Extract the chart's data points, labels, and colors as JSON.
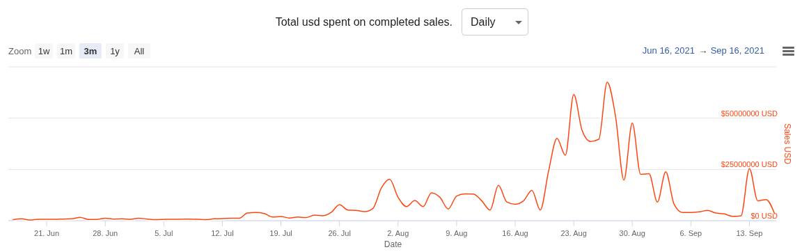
{
  "chart_data": {
    "type": "line",
    "title": "Total usd spent on completed sales.",
    "xlabel": "Date",
    "ylabel": "Sales USD",
    "annotations": [
      "Daily",
      "Zoom",
      "1w",
      "1m",
      "3m",
      "1y",
      "All",
      "Jun 16, 2021",
      "→",
      "Sep 16, 2021"
    ],
    "x": [
      "2021-06-17",
      "2021-06-18",
      "2021-06-19",
      "2021-06-20",
      "2021-06-21",
      "2021-06-22",
      "2021-06-23",
      "2021-06-24",
      "2021-06-25",
      "2021-06-26",
      "2021-06-27",
      "2021-06-28",
      "2021-06-29",
      "2021-06-30",
      "2021-07-01",
      "2021-07-02",
      "2021-07-03",
      "2021-07-04",
      "2021-07-05",
      "2021-07-06",
      "2021-07-07",
      "2021-07-08",
      "2021-07-09",
      "2021-07-10",
      "2021-07-11",
      "2021-07-12",
      "2021-07-13",
      "2021-07-14",
      "2021-07-15",
      "2021-07-16",
      "2021-07-17",
      "2021-07-18",
      "2021-07-19",
      "2021-07-20",
      "2021-07-21",
      "2021-07-22",
      "2021-07-23",
      "2021-07-24",
      "2021-07-25",
      "2021-07-26",
      "2021-07-27",
      "2021-07-28",
      "2021-07-29",
      "2021-07-30",
      "2021-07-31",
      "2021-08-01",
      "2021-08-02",
      "2021-08-03",
      "2021-08-04",
      "2021-08-05",
      "2021-08-06",
      "2021-08-07",
      "2021-08-08",
      "2021-08-09",
      "2021-08-10",
      "2021-08-11",
      "2021-08-12",
      "2021-08-13",
      "2021-08-14",
      "2021-08-15",
      "2021-08-16",
      "2021-08-17",
      "2021-08-18",
      "2021-08-19",
      "2021-08-20",
      "2021-08-21",
      "2021-08-22",
      "2021-08-23",
      "2021-08-24",
      "2021-08-25",
      "2021-08-26",
      "2021-08-27",
      "2021-08-28",
      "2021-08-29",
      "2021-08-30",
      "2021-08-31",
      "2021-09-01",
      "2021-09-02",
      "2021-09-03",
      "2021-09-04",
      "2021-09-05",
      "2021-09-06",
      "2021-09-07",
      "2021-09-08",
      "2021-09-09",
      "2021-09-10",
      "2021-09-11",
      "2021-09-12",
      "2021-09-13",
      "2021-09-14",
      "2021-09-15",
      "2021-09-16"
    ],
    "series": [
      {
        "color": "#ff4510",
        "values": [
          500000,
          900000,
          300000,
          700000,
          700000,
          700000,
          800000,
          900000,
          1600000,
          600000,
          600000,
          1200000,
          800000,
          900000,
          700000,
          1200000,
          800000,
          500000,
          600000,
          700000,
          700000,
          800000,
          700000,
          500000,
          900000,
          1000000,
          1200000,
          1200000,
          3700000,
          4000000,
          3500000,
          1800000,
          2000000,
          1300000,
          1800000,
          1500000,
          2700000,
          2400000,
          4000000,
          7800000,
          5200000,
          5000000,
          4400000,
          6000000,
          15900000,
          20200000,
          11400000,
          6900000,
          9800000,
          6900000,
          13600000,
          11400000,
          5700000,
          12000000,
          13100000,
          13000000,
          9700000,
          5200000,
          17200000,
          9100000,
          8000000,
          9700000,
          14800000,
          5200000,
          24300000,
          40100000,
          31900000,
          61500000,
          44000000,
          38600000,
          39700000,
          67500000,
          50800000,
          19800000,
          47600000,
          22600000,
          22900000,
          9100000,
          23800000,
          8000000,
          4000000,
          4000000,
          4300000,
          5000000,
          3700000,
          3300000,
          2100000,
          2400000,
          25400000,
          9700000,
          10300000,
          3500000
        ]
      }
    ],
    "xlim": [
      "2021-06-16T10:00",
      "2021-09-16T05:00"
    ],
    "xticks": [
      {
        "value": "2021-06-21",
        "label": "21. Jun"
      },
      {
        "value": "2021-06-28",
        "label": "28. Jun"
      },
      {
        "value": "2021-07-05",
        "label": "5. Jul"
      },
      {
        "value": "2021-07-12",
        "label": "12. Jul"
      },
      {
        "value": "2021-07-19",
        "label": "19. Jul"
      },
      {
        "value": "2021-07-26",
        "label": "26. Jul"
      },
      {
        "value": "2021-08-02",
        "label": "2. Aug"
      },
      {
        "value": "2021-08-09",
        "label": "9. Aug"
      },
      {
        "value": "2021-08-16",
        "label": "16. Aug"
      },
      {
        "value": "2021-08-23",
        "label": "23. Aug"
      },
      {
        "value": "2021-08-30",
        "label": "30. Aug"
      },
      {
        "value": "2021-09-06",
        "label": "6. Sep"
      },
      {
        "value": "2021-09-13",
        "label": "13. Sep"
      }
    ],
    "ylim": [
      0,
      75000000
    ],
    "yticks": [
      {
        "value": 0,
        "label": "$0 USD"
      },
      {
        "value": 25000000,
        "label": "$25000000 USD"
      },
      {
        "value": 50000000,
        "label": "$50000000 USD"
      },
      {
        "value": 75000000,
        "label": null
      }
    ],
    "grid": "y",
    "marker": "none",
    "line_style": "solid"
  }
}
